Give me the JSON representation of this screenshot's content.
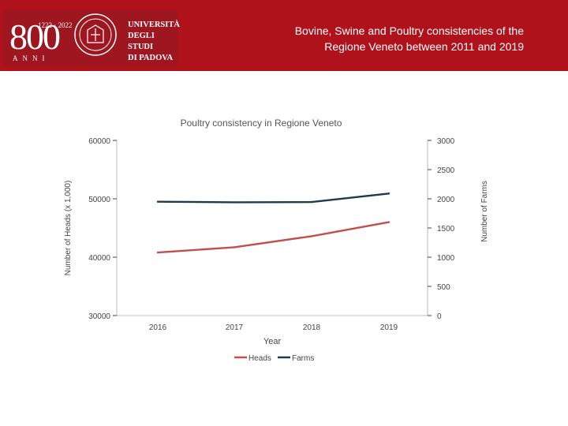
{
  "header": {
    "title_line1": "Bovine, Swine and Poultry consistencies of the",
    "title_line2": "Regione Veneto between 2011 and 2019",
    "logo": {
      "number": "800",
      "years": "1222 · 2022",
      "anni": "ANNI",
      "name_line1": "UNIVERSITÀ",
      "name_line2": "DEGLI STUDI",
      "name_line3": "DI PADOVA"
    },
    "bg_color": "#b0121b"
  },
  "chart_data": {
    "type": "line",
    "title": "Poultry consistency in Regione Veneto",
    "xlabel": "Year",
    "ylabel": "Number of Heads (x 1,000)",
    "y2label": "Number of Farms",
    "categories": [
      "2016",
      "2017",
      "2018",
      "2019"
    ],
    "ylim": [
      30000,
      60000
    ],
    "y2lim": [
      0,
      3000
    ],
    "yticks": [
      "30000",
      "40000",
      "50000",
      "60000"
    ],
    "y2ticks": [
      "0",
      "500",
      "1000",
      "1500",
      "2000",
      "2500",
      "3000"
    ],
    "series": [
      {
        "name": "Heads",
        "axis": "left",
        "color": "#c0504d",
        "values": [
          40800,
          41700,
          43600,
          46000
        ]
      },
      {
        "name": "Farms",
        "axis": "right",
        "color": "#1f3a4d",
        "values": [
          1950,
          1940,
          1945,
          2090
        ]
      }
    ],
    "legend": "bottom",
    "grid": false
  }
}
